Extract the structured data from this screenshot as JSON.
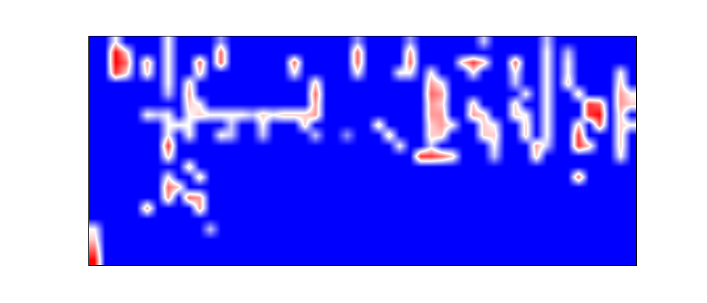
{
  "chart_data": {
    "type": "heatmap",
    "cells": [
      [
        0,
        0,
        0.5,
        0,
        0,
        0,
        0,
        0.5,
        0,
        0,
        0,
        0,
        0.3,
        0,
        0,
        0,
        0,
        0,
        0,
        0,
        0,
        0,
        0,
        0,
        0,
        0.3,
        0,
        0,
        0,
        0,
        0.3,
        0,
        0,
        0,
        0,
        0,
        0,
        0.4,
        0,
        0,
        0,
        0,
        0,
        0.4,
        0,
        0,
        0,
        0,
        0,
        0,
        0,
        0
      ],
      [
        0,
        0,
        1,
        0.6,
        0,
        0,
        0,
        0.5,
        0,
        0,
        0,
        0,
        0.8,
        0,
        0,
        0,
        0,
        0,
        0,
        0,
        0,
        0,
        0,
        0,
        0,
        0.8,
        0,
        0,
        0,
        0,
        0.7,
        0,
        0,
        0,
        0,
        0,
        0,
        0,
        0,
        0,
        0,
        0,
        0,
        0.5,
        0,
        0.4,
        0,
        0,
        0,
        0,
        0,
        0
      ],
      [
        0,
        0,
        1,
        0.8,
        0,
        0.7,
        0,
        0.5,
        0,
        0,
        0.8,
        0,
        0.8,
        0,
        0,
        0,
        0,
        0,
        0,
        0.8,
        0,
        0,
        0,
        0,
        0,
        0.8,
        0,
        0,
        0,
        0,
        0.8,
        0,
        0,
        0,
        0,
        0.6,
        0.9,
        0.6,
        0,
        0,
        0.8,
        0,
        0,
        0.5,
        0,
        0.5,
        0,
        0,
        0,
        0,
        0,
        0
      ],
      [
        0,
        0,
        0.9,
        0.6,
        0,
        0.6,
        0,
        0.5,
        0,
        0,
        0.6,
        0,
        0,
        0,
        0,
        0,
        0,
        0,
        0,
        0.5,
        0,
        0,
        0,
        0,
        0,
        0.5,
        0,
        0,
        0,
        0.5,
        0.5,
        0,
        0.5,
        0,
        0,
        0,
        0.5,
        0,
        0,
        0,
        0.5,
        0,
        0,
        0.5,
        0,
        0.5,
        0,
        0,
        0,
        0,
        0.5,
        0
      ],
      [
        0,
        0,
        0,
        0,
        0,
        0,
        0,
        0.5,
        0,
        0.6,
        0,
        0,
        0,
        0,
        0,
        0,
        0,
        0,
        0,
        0,
        0,
        0.6,
        0,
        0,
        0,
        0,
        0,
        0,
        0,
        0,
        0,
        0,
        0.7,
        0.5,
        0,
        0,
        0,
        0,
        0,
        0,
        0.4,
        0,
        0,
        0.5,
        0,
        0.6,
        0,
        0,
        0,
        0,
        0.6,
        0
      ],
      [
        0,
        0,
        0,
        0,
        0,
        0,
        0,
        0.4,
        0,
        0.7,
        0,
        0,
        0,
        0,
        0,
        0,
        0,
        0,
        0,
        0,
        0,
        0.8,
        0,
        0,
        0,
        0,
        0,
        0,
        0,
        0,
        0,
        0,
        0.8,
        0.7,
        0,
        0,
        0,
        0,
        0,
        0,
        0,
        0.5,
        0,
        0.5,
        0,
        0,
        0.6,
        0,
        0,
        0,
        0.7,
        0.5
      ],
      [
        0,
        0,
        0,
        0,
        0,
        0,
        0,
        0,
        0,
        0.6,
        0.5,
        0,
        0,
        0,
        0,
        0,
        0,
        0,
        0,
        0,
        0,
        0.7,
        0,
        0,
        0,
        0,
        0,
        0,
        0,
        0,
        0,
        0,
        0.7,
        0.6,
        0,
        0,
        0.6,
        0,
        0,
        0,
        0.6,
        0,
        0,
        0.5,
        0,
        0,
        0,
        0.9,
        0.8,
        0,
        0.7,
        0.6
      ],
      [
        0,
        0,
        0,
        0,
        0,
        0.5,
        0.4,
        0.5,
        0,
        0.5,
        0.6,
        0.5,
        0.5,
        0.5,
        0.5,
        0.4,
        0.6,
        0.5,
        0.6,
        0.6,
        0.6,
        0.7,
        0,
        0,
        0,
        0,
        0,
        0,
        0,
        0,
        0,
        0,
        0.7,
        0.7,
        0,
        0,
        0.7,
        0.6,
        0,
        0,
        0.6,
        0.5,
        0,
        0.5,
        0,
        0,
        0,
        0.9,
        1,
        0,
        0.6,
        0
      ],
      [
        0,
        0,
        0,
        0,
        0,
        0,
        0,
        0.5,
        0.5,
        0.5,
        0,
        0,
        0,
        0.4,
        0,
        0,
        0.5,
        0,
        0,
        0,
        0.6,
        0,
        0,
        0,
        0,
        0,
        0,
        0.6,
        0,
        0,
        0,
        0,
        0.6,
        0.7,
        0.5,
        0,
        0,
        0.6,
        0.5,
        0,
        0,
        0.6,
        0,
        0.5,
        0,
        0,
        0.6,
        0,
        0.8,
        0,
        0.6,
        0.5
      ],
      [
        0,
        0,
        0,
        0,
        0,
        0,
        0,
        0.5,
        0,
        0.5,
        0,
        0,
        0.5,
        0.4,
        0,
        0,
        0.4,
        0,
        0,
        0,
        0,
        0.4,
        0,
        0,
        0.3,
        0,
        0,
        0,
        0.6,
        0,
        0,
        0,
        0.6,
        0.6,
        0,
        0,
        0,
        0.6,
        0.6,
        0,
        0,
        0.6,
        0,
        0.5,
        0,
        0,
        0.9,
        0,
        0,
        0,
        0.6,
        0
      ],
      [
        0,
        0,
        0,
        0,
        0,
        0,
        0,
        0.9,
        0,
        0,
        0,
        0,
        0,
        0,
        0,
        0,
        0,
        0,
        0,
        0,
        0,
        0,
        0,
        0,
        0,
        0,
        0,
        0,
        0,
        0.5,
        0,
        0,
        0.4,
        0,
        0,
        0,
        0,
        0,
        0.5,
        0,
        0,
        0,
        0.7,
        0.4,
        0,
        0,
        0.9,
        0.6,
        0,
        0,
        0.6,
        0
      ],
      [
        0,
        0,
        0,
        0,
        0,
        0,
        0,
        0.6,
        0,
        0,
        0,
        0,
        0,
        0,
        0,
        0,
        0,
        0,
        0,
        0,
        0,
        0,
        0,
        0,
        0,
        0,
        0,
        0,
        0,
        0,
        0,
        0.9,
        0.9,
        0.8,
        0.6,
        0,
        0,
        0,
        0.4,
        0,
        0,
        0,
        0.6,
        0,
        0,
        0,
        0,
        0,
        0,
        0,
        0.5,
        0
      ],
      [
        0,
        0,
        0,
        0,
        0,
        0,
        0,
        0,
        0,
        0.6,
        0,
        0,
        0,
        0,
        0,
        0,
        0,
        0,
        0,
        0,
        0,
        0,
        0,
        0,
        0,
        0,
        0,
        0,
        0,
        0,
        0,
        0,
        0,
        0,
        0,
        0,
        0,
        0,
        0,
        0,
        0,
        0,
        0,
        0,
        0,
        0,
        0,
        0,
        0,
        0,
        0,
        0
      ],
      [
        0,
        0,
        0,
        0,
        0,
        0,
        0,
        0.5,
        0,
        0,
        0.6,
        0,
        0,
        0,
        0,
        0,
        0,
        0,
        0,
        0,
        0,
        0,
        0,
        0,
        0,
        0,
        0,
        0,
        0,
        0,
        0,
        0,
        0,
        0,
        0,
        0,
        0,
        0,
        0,
        0,
        0,
        0,
        0,
        0,
        0,
        0,
        0.8,
        0,
        0,
        0,
        0,
        0
      ],
      [
        0,
        0,
        0,
        0,
        0,
        0,
        0,
        0.8,
        0.6,
        0,
        0,
        0,
        0,
        0,
        0,
        0,
        0,
        0,
        0,
        0,
        0,
        0,
        0,
        0,
        0,
        0,
        0,
        0,
        0,
        0,
        0,
        0,
        0,
        0,
        0,
        0,
        0,
        0,
        0,
        0,
        0,
        0,
        0,
        0,
        0,
        0,
        0,
        0,
        0,
        0,
        0,
        0
      ],
      [
        0,
        0,
        0,
        0,
        0,
        0,
        0,
        0.7,
        0,
        0.8,
        0.7,
        0,
        0,
        0,
        0,
        0,
        0,
        0,
        0,
        0,
        0,
        0,
        0,
        0,
        0,
        0,
        0,
        0,
        0,
        0,
        0,
        0,
        0,
        0,
        0,
        0,
        0,
        0,
        0,
        0,
        0,
        0,
        0,
        0,
        0,
        0,
        0,
        0,
        0,
        0,
        0,
        0
      ],
      [
        0,
        0,
        0,
        0,
        0,
        0.7,
        0,
        0,
        0,
        0,
        0.7,
        0,
        0,
        0,
        0,
        0,
        0,
        0,
        0,
        0,
        0,
        0,
        0,
        0,
        0,
        0,
        0,
        0,
        0,
        0,
        0,
        0,
        0,
        0,
        0,
        0,
        0,
        0,
        0,
        0,
        0,
        0,
        0,
        0,
        0,
        0,
        0,
        0,
        0,
        0,
        0,
        0
      ],
      [
        0,
        0,
        0,
        0,
        0,
        0,
        0,
        0,
        0,
        0,
        0,
        0,
        0,
        0,
        0,
        0,
        0,
        0,
        0,
        0,
        0,
        0,
        0,
        0,
        0,
        0,
        0,
        0,
        0,
        0,
        0,
        0,
        0,
        0,
        0,
        0,
        0,
        0,
        0,
        0,
        0,
        0,
        0,
        0,
        0,
        0,
        0,
        0,
        0,
        0,
        0,
        0
      ],
      [
        0.5,
        0,
        0,
        0,
        0,
        0,
        0,
        0,
        0,
        0,
        0,
        0.4,
        0,
        0,
        0,
        0,
        0,
        0,
        0,
        0,
        0,
        0,
        0,
        0,
        0,
        0,
        0,
        0,
        0,
        0,
        0,
        0,
        0,
        0,
        0,
        0,
        0,
        0,
        0,
        0,
        0,
        0,
        0,
        0,
        0,
        0,
        0,
        0,
        0,
        0,
        0,
        0
      ],
      [
        0.6,
        0,
        0,
        0,
        0,
        0,
        0,
        0,
        0,
        0,
        0,
        0,
        0,
        0,
        0,
        0,
        0,
        0,
        0,
        0,
        0,
        0,
        0,
        0,
        0,
        0,
        0,
        0,
        0,
        0,
        0,
        0,
        0,
        0,
        0,
        0,
        0,
        0,
        0,
        0,
        0,
        0,
        0,
        0,
        0,
        0,
        0,
        0,
        0,
        0,
        0,
        0
      ],
      [
        0.8,
        0,
        0,
        0,
        0,
        0,
        0,
        0,
        0,
        0,
        0,
        0,
        0,
        0,
        0,
        0,
        0,
        0,
        0,
        0,
        0,
        0,
        0,
        0,
        0,
        0,
        0,
        0,
        0,
        0,
        0,
        0,
        0,
        0,
        0,
        0,
        0,
        0,
        0,
        0,
        0,
        0,
        0,
        0,
        0,
        0,
        0,
        0,
        0,
        0,
        0,
        0
      ],
      [
        1,
        0,
        0,
        0,
        0,
        0,
        0,
        0,
        0,
        0,
        0,
        0,
        0,
        0,
        0,
        0,
        0,
        0,
        0,
        0,
        0,
        0,
        0,
        0,
        0,
        0,
        0,
        0,
        0,
        0,
        0,
        0,
        0,
        0,
        0,
        0,
        0,
        0,
        0,
        0,
        0,
        0,
        0,
        0,
        0,
        0,
        0,
        0,
        0,
        0,
        0,
        0
      ]
    ],
    "zlim": [
      0,
      1
    ],
    "color": [
      "#0000ff",
      "#ffffff",
      "#ff0000"
    ],
    "tick_labels": false,
    "grid": false
  }
}
